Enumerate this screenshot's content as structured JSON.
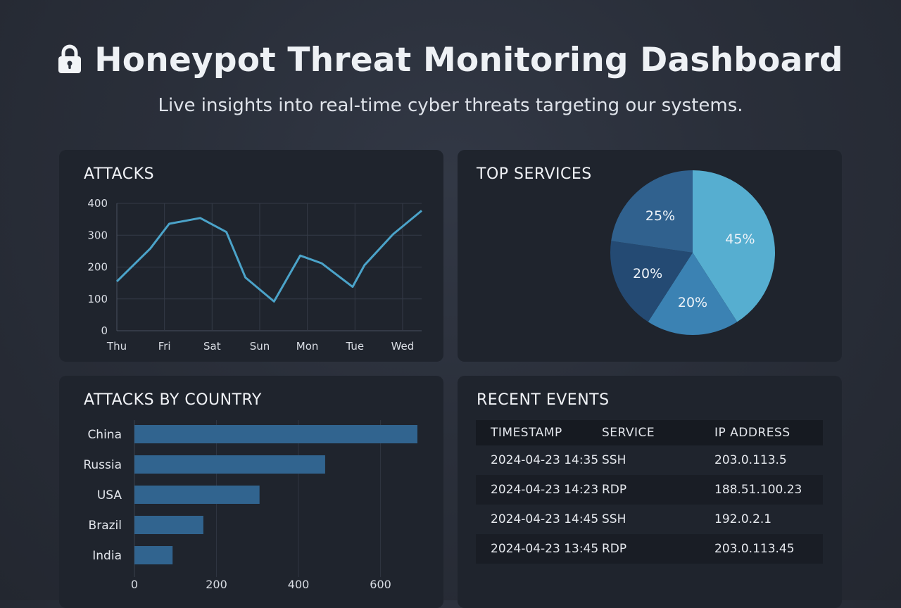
{
  "header": {
    "title": "Honeypot Threat Monitoring Dashboard",
    "subtitle": "Live insights into real-time cyber threats targeting our systems.",
    "icon": "lock-icon"
  },
  "panels": {
    "attacks": {
      "title": "ATTACKS",
      "chart_data": {
        "type": "line",
        "x_ticks": [
          "Thu",
          "Fri",
          "Sat",
          "Sun",
          "Mon",
          "Tue",
          "Wed"
        ],
        "y_ticks": [
          "400",
          "300",
          "200",
          "100",
          "0"
        ],
        "ylim": [
          0,
          400
        ],
        "grid": true,
        "series": [
          {
            "values": [
              {
                "x": 0,
                "y": 155
              },
              {
                "x": 0.7,
                "y": 258
              },
              {
                "x": 1.1,
                "y": 336
              },
              {
                "x": 1.75,
                "y": 354
              },
              {
                "x": 2.3,
                "y": 310
              },
              {
                "x": 2.7,
                "y": 167
              },
              {
                "x": 3.3,
                "y": 92
              },
              {
                "x": 3.85,
                "y": 236
              },
              {
                "x": 4.3,
                "y": 212
              },
              {
                "x": 4.95,
                "y": 138
              },
              {
                "x": 5.2,
                "y": 206
              },
              {
                "x": 5.8,
                "y": 303
              },
              {
                "x": 6.4,
                "y": 377
              }
            ],
            "color": "#4ba3c9"
          }
        ]
      }
    },
    "services": {
      "title": "TOP SERVICES",
      "chart_data": {
        "type": "pie",
        "values": [
          45,
          20,
          20,
          25
        ],
        "labels": [
          "45%",
          "20%",
          "20%",
          "25%"
        ],
        "colors": [
          "#56aed0",
          "#3b82b3",
          "#244a73",
          "#30618e"
        ]
      }
    },
    "country": {
      "title": "ATTACKS BY COUNTRY",
      "chart_data": {
        "type": "bar",
        "orientation": "horizontal",
        "categories": [
          "China",
          "Russia",
          "USA",
          "Brazil",
          "India"
        ],
        "values": [
          690,
          465,
          305,
          168,
          93
        ],
        "x_ticks": [
          "0",
          "200",
          "400",
          "600"
        ],
        "xlim": [
          0,
          690
        ],
        "color": "#31648f"
      }
    },
    "events": {
      "title": "RECENT EVENTS",
      "columns": [
        "TIMESTAMP",
        "SERVICE",
        "IP ADDRESS"
      ],
      "rows": [
        [
          "2024-04-23 14:35",
          "SSH",
          "203.0.113.5"
        ],
        [
          "2024-04-23 14:23",
          "RDP",
          "188.51.100.23"
        ],
        [
          "2024-04-23 14:45",
          "SSH",
          "192.0.2.1"
        ],
        [
          "2024-04-23 13:45",
          "RDP",
          "203.0.113.45"
        ]
      ]
    }
  },
  "colors": {
    "background": "#2a2f3a",
    "panel": "#1f242d",
    "accent": "#4ba3c9"
  }
}
